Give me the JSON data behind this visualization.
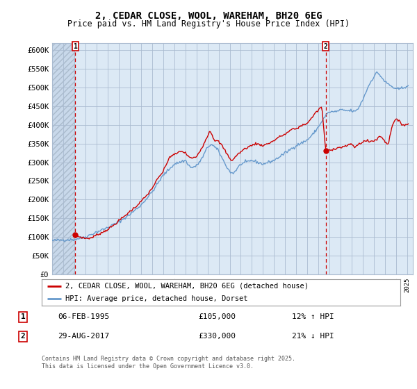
{
  "title": "2, CEDAR CLOSE, WOOL, WAREHAM, BH20 6EG",
  "subtitle": "Price paid vs. HM Land Registry's House Price Index (HPI)",
  "legend_label_red": "2, CEDAR CLOSE, WOOL, WAREHAM, BH20 6EG (detached house)",
  "legend_label_blue": "HPI: Average price, detached house, Dorset",
  "annotation1_date": "06-FEB-1995",
  "annotation1_price": "£105,000",
  "annotation1_hpi": "12% ↑ HPI",
  "annotation2_date": "29-AUG-2017",
  "annotation2_price": "£330,000",
  "annotation2_hpi": "21% ↓ HPI",
  "footer": "Contains HM Land Registry data © Crown copyright and database right 2025.\nThis data is licensed under the Open Government Licence v3.0.",
  "ylim": [
    0,
    620000
  ],
  "yticks": [
    0,
    50000,
    100000,
    150000,
    200000,
    250000,
    300000,
    350000,
    400000,
    450000,
    500000,
    550000,
    600000
  ],
  "ytick_labels": [
    "£0",
    "£50K",
    "£100K",
    "£150K",
    "£200K",
    "£250K",
    "£300K",
    "£350K",
    "£400K",
    "£450K",
    "£500K",
    "£550K",
    "£600K"
  ],
  "chart_bg": "#dce9f5",
  "hatch_bg": "#c8d8ea",
  "background_color": "#ffffff",
  "grid_color": "#aabbd0",
  "red_color": "#cc0000",
  "blue_color": "#6699cc",
  "marker1_x": 1995.09,
  "marker1_y": 105000,
  "marker2_x": 2017.65,
  "marker2_y": 330000,
  "vline1_x": 1995.09,
  "vline2_x": 2017.65,
  "xmin": 1993.0,
  "xmax": 2025.5
}
